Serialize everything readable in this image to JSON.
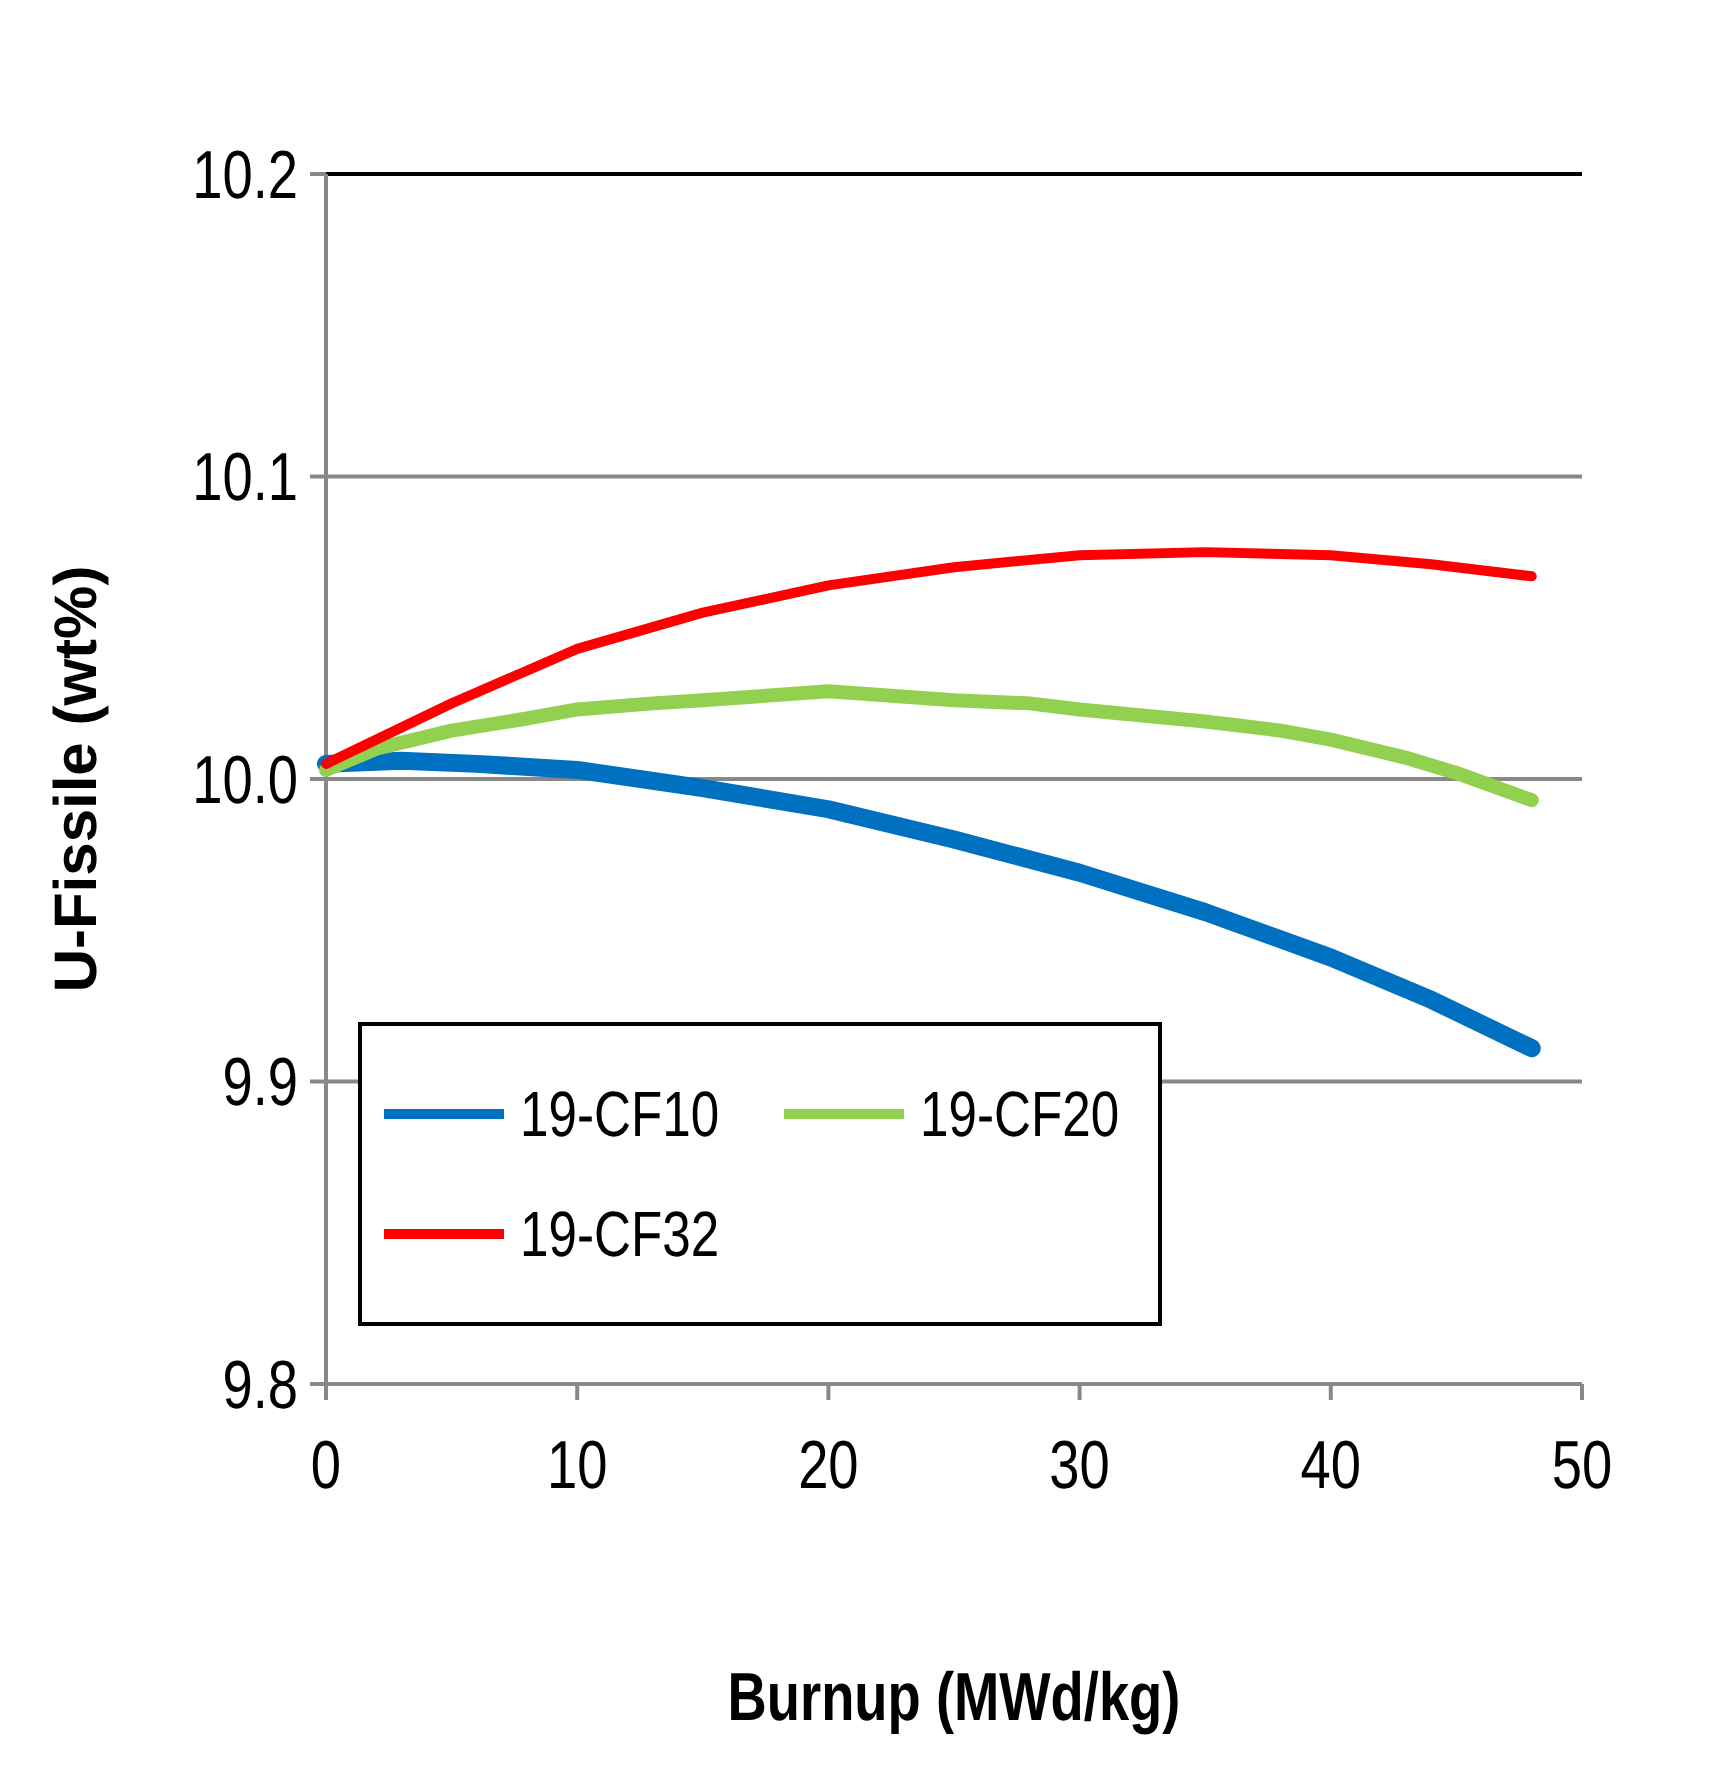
{
  "chart_data": {
    "type": "line",
    "xlabel": "Burnup (MWd/kg)",
    "ylabel": "U-Fissile (wt%)",
    "xlim": [
      0,
      50
    ],
    "xticks": [
      0,
      10,
      20,
      30,
      40,
      50
    ],
    "ylim": [
      9.8,
      10.2
    ],
    "yticks": [
      {
        "value": 9.8,
        "label": "9.8"
      },
      {
        "value": 9.9,
        "label": "9.9"
      },
      {
        "value": 10.0,
        "label": "10.0"
      },
      {
        "value": 10.1,
        "label": "10.1"
      },
      {
        "value": 10.2,
        "label": "10.2"
      }
    ],
    "grid": "y",
    "legend": "bottom left",
    "marker": "none",
    "line_style": "solid",
    "series": [
      {
        "name": "19-CF10",
        "color": "#0070c0",
        "x": [
          0,
          3,
          6,
          10,
          15,
          20,
          25,
          30,
          35,
          40,
          44,
          48
        ],
        "values": [
          10.005,
          10.006,
          10.005,
          10.003,
          9.997,
          9.99,
          9.98,
          9.969,
          9.956,
          9.941,
          9.927,
          9.911
        ]
      },
      {
        "name": "19-CF20",
        "color": "#92d050",
        "x": [
          0,
          2,
          5,
          8,
          10,
          13,
          15,
          20,
          25,
          28,
          30,
          35,
          38,
          40,
          43,
          45,
          48
        ],
        "values": [
          10.003,
          10.01,
          10.016,
          10.02,
          10.023,
          10.025,
          10.026,
          10.029,
          10.026,
          10.025,
          10.023,
          10.019,
          10.016,
          10.013,
          10.007,
          10.002,
          9.993
        ]
      },
      {
        "name": "19-CF32",
        "color": "#ff0000",
        "x": [
          0,
          5,
          10,
          15,
          20,
          25,
          30,
          35,
          40,
          44,
          48
        ],
        "values": [
          10.005,
          10.025,
          10.043,
          10.055,
          10.064,
          10.07,
          10.074,
          10.075,
          10.074,
          10.071,
          10.067
        ]
      }
    ]
  }
}
